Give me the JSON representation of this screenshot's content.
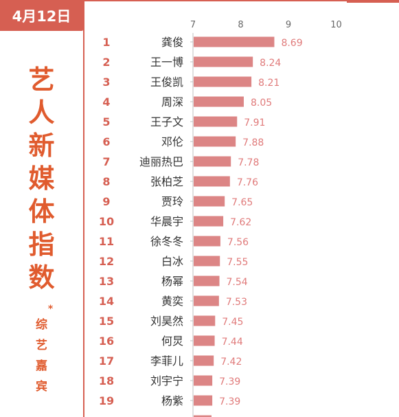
{
  "date_label": "4月12日",
  "title_chars": [
    "艺",
    "人",
    "新",
    "媒",
    "体",
    "指",
    "数"
  ],
  "subtitle_mark": "*",
  "subtitle_chars": [
    "综",
    "艺",
    "嘉",
    "宾"
  ],
  "colors": {
    "accent": "#d65f52",
    "bar": "#dc8585",
    "rank": "#d65f52",
    "title": "#e05b2e",
    "value": "#e07a7a"
  },
  "chart_data": {
    "type": "bar",
    "orientation": "horizontal",
    "xlim": [
      7,
      10
    ],
    "xticks": [
      "7",
      "8",
      "9",
      "10"
    ],
    "grid": false,
    "ranks": [
      "1",
      "2",
      "3",
      "4",
      "5",
      "6",
      "7",
      "8",
      "9",
      "10",
      "11",
      "12",
      "13",
      "14",
      "15",
      "16",
      "17",
      "18",
      "19"
    ],
    "categories": [
      "龚俊",
      "王一博",
      "王俊凯",
      "周深",
      "王子文",
      "邓伦",
      "迪丽热巴",
      "张柏芝",
      "贾玲",
      "华晨宇",
      "徐冬冬",
      "白冰",
      "杨幂",
      "黄奕",
      "刘昊然",
      "何炅",
      "李菲儿",
      "刘宇宁",
      "杨紫"
    ],
    "values": [
      8.69,
      8.24,
      8.21,
      8.05,
      7.91,
      7.88,
      7.78,
      7.76,
      7.65,
      7.62,
      7.56,
      7.55,
      7.54,
      7.53,
      7.45,
      7.44,
      7.42,
      7.39,
      7.39
    ]
  }
}
